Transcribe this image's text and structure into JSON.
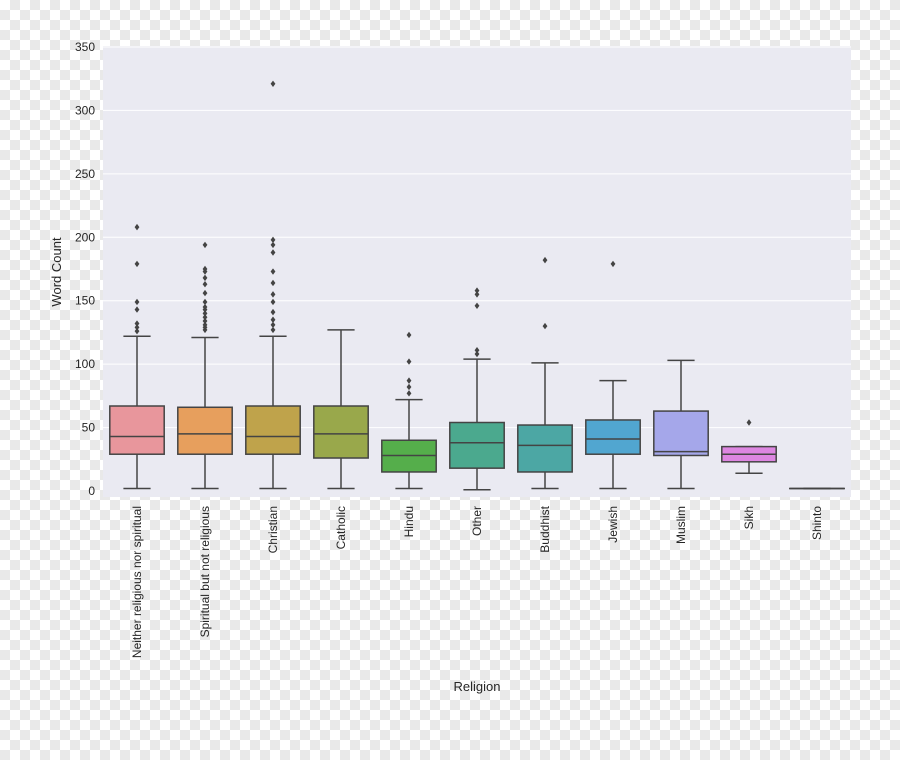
{
  "chart_data": {
    "type": "boxplot",
    "title": "",
    "xlabel": "Religion",
    "ylabel": "Word Count",
    "ylim": [
      0,
      350
    ],
    "yticks": [
      0,
      50,
      100,
      150,
      200,
      250,
      300,
      350
    ],
    "grid": true,
    "categories": [
      {
        "label": "Neither religious nor spiritual",
        "color": "#e8969c",
        "whisker_low": 2,
        "q1": 29,
        "median": 43,
        "q3": 67,
        "whisker_high": 122,
        "outliers": [
          126,
          129,
          132,
          143,
          149,
          179,
          208
        ]
      },
      {
        "label": "Spiritual but not religious",
        "color": "#e79f5d",
        "whisker_low": 2,
        "q1": 29,
        "median": 45,
        "q3": 66,
        "whisker_high": 121,
        "outliers": [
          127,
          129,
          131,
          134,
          137,
          140,
          143,
          145,
          149,
          156,
          163,
          168,
          173,
          175,
          194
        ]
      },
      {
        "label": "Christian",
        "color": "#bfa34b",
        "whisker_low": 2,
        "q1": 29,
        "median": 43,
        "q3": 67,
        "whisker_high": 122,
        "outliers": [
          127,
          131,
          135,
          141,
          149,
          155,
          164,
          173,
          188,
          194,
          198,
          321
        ]
      },
      {
        "label": "Catholic",
        "color": "#99a84b",
        "whisker_low": 2,
        "q1": 26,
        "median": 45,
        "q3": 67,
        "whisker_high": 127,
        "outliers": []
      },
      {
        "label": "Hindu",
        "color": "#55ae4b",
        "whisker_low": 2,
        "q1": 15,
        "median": 28,
        "q3": 40,
        "whisker_high": 72,
        "outliers": [
          77,
          82,
          87,
          102,
          123
        ]
      },
      {
        "label": "Other",
        "color": "#4ba98e",
        "whisker_low": 1,
        "q1": 18,
        "median": 38,
        "q3": 54,
        "whisker_high": 104,
        "outliers": [
          108,
          111,
          146,
          155,
          158
        ]
      },
      {
        "label": "Buddhist",
        "color": "#4ca7a4",
        "whisker_low": 2,
        "q1": 15,
        "median": 36,
        "q3": 52,
        "whisker_high": 101,
        "outliers": [
          130,
          182
        ]
      },
      {
        "label": "Jewish",
        "color": "#51a6d0",
        "whisker_low": 2,
        "q1": 29,
        "median": 41,
        "q3": 56,
        "whisker_high": 87,
        "outliers": [
          179
        ]
      },
      {
        "label": "Muslim",
        "color": "#a5a7ea",
        "whisker_low": 2,
        "q1": 28,
        "median": 31,
        "q3": 63,
        "whisker_high": 103,
        "outliers": []
      },
      {
        "label": "Sikh",
        "color": "#dd86e1",
        "whisker_low": 14,
        "q1": 23,
        "median": 29,
        "q3": 35,
        "whisker_high": 35,
        "outliers": [
          54
        ]
      },
      {
        "label": "Shinto",
        "color": "#e48bba",
        "whisker_low": 2,
        "q1": 2,
        "median": 2,
        "q3": 2,
        "whisker_high": 2,
        "outliers": []
      }
    ]
  }
}
